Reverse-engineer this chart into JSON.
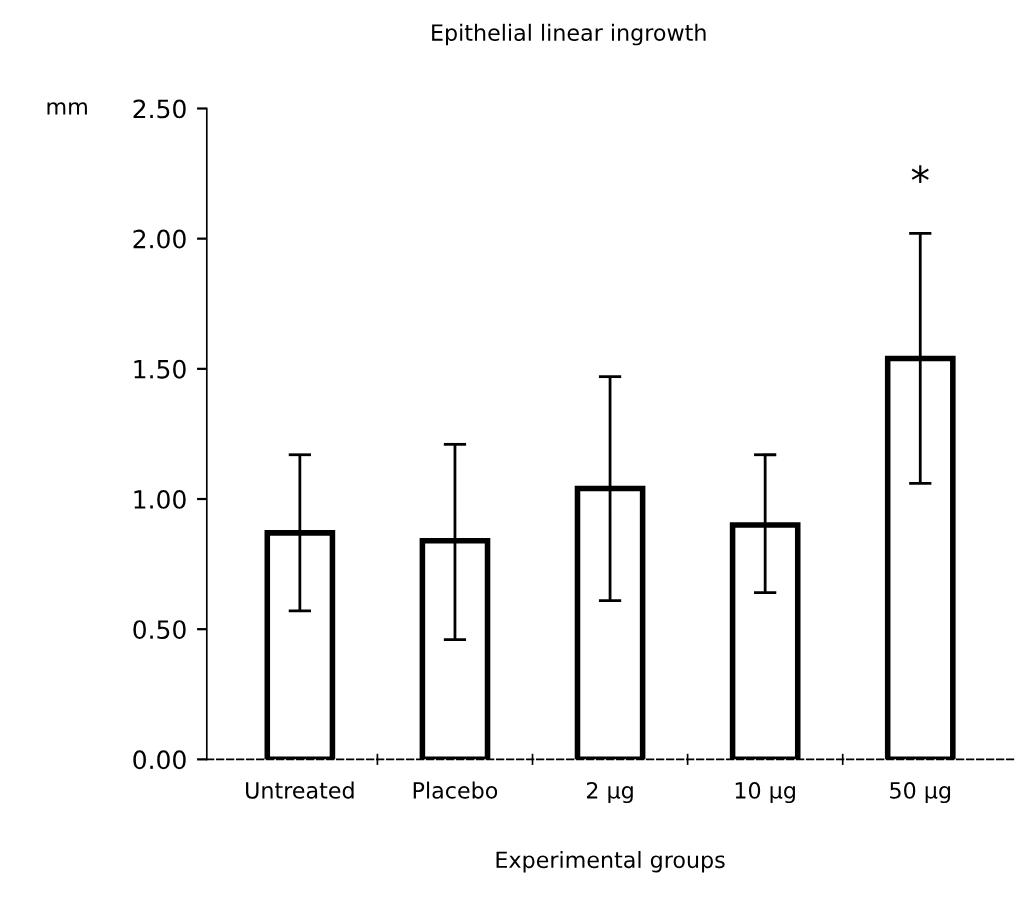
{
  "chart_data": {
    "type": "bar",
    "title": "Epithelial linear ingrowth",
    "xlabel": "Experimental groups",
    "ylabel": "mm",
    "categories": [
      "Untreated",
      "Placebo",
      "2 µg",
      "10 µg",
      "50 µg"
    ],
    "series": [
      {
        "color": "#ffffff",
        "values": [
          0.87,
          0.84,
          1.04,
          0.9,
          1.54
        ],
        "errors": [
          [
            0.57,
            1.17
          ],
          [
            0.46,
            1.21
          ],
          [
            0.61,
            1.47
          ],
          [
            0.64,
            1.17
          ],
          [
            1.06,
            2.02
          ]
        ]
      }
    ],
    "annotations": [
      "*"
    ],
    "ylim": [
      0,
      2.5
    ],
    "yticks": [
      {
        "value": 0,
        "label": "0.00"
      },
      {
        "value": 0.5,
        "label": "0.50"
      },
      {
        "value": 1,
        "label": "1.00"
      },
      {
        "value": 1.5,
        "label": "1.50"
      },
      {
        "value": 2,
        "label": "2.00"
      },
      {
        "value": 2.5,
        "label": "2.50"
      }
    ],
    "grid": false,
    "legend": false
  }
}
